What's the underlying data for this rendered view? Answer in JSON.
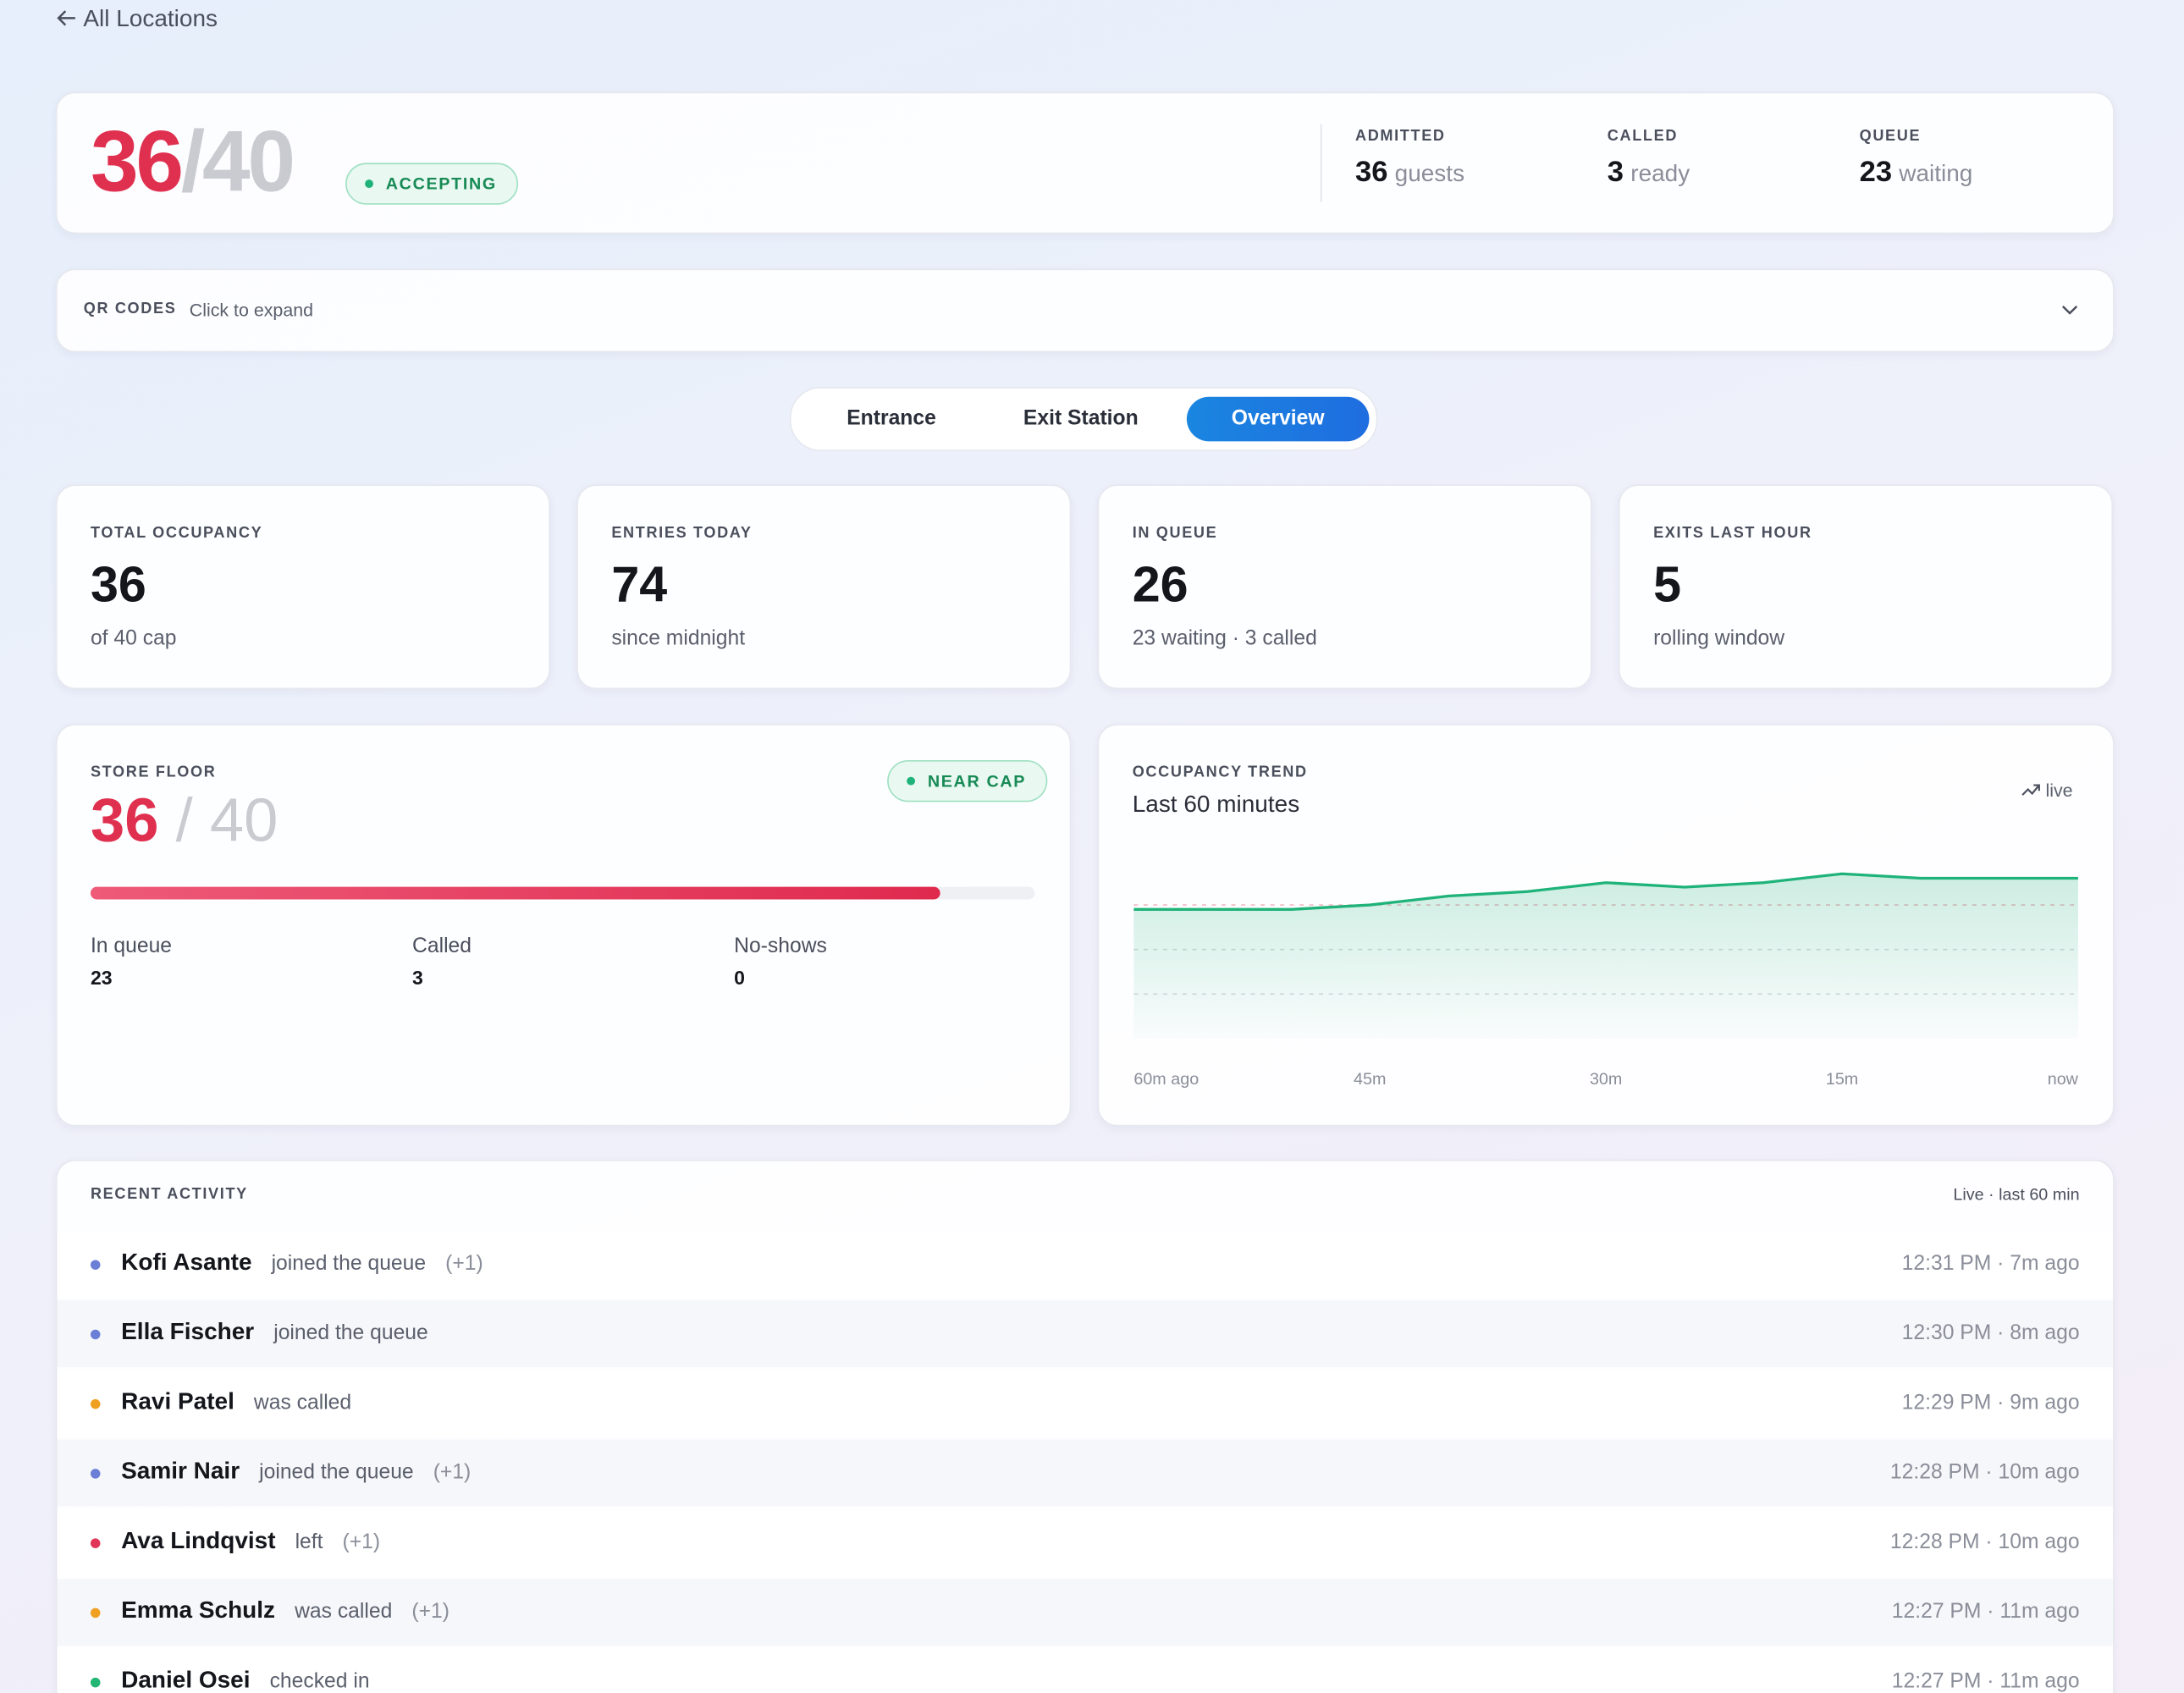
{
  "back": "All Locations",
  "summary": {
    "current": 36,
    "capacity": 40,
    "status": "ACCEPTING",
    "stats": [
      {
        "label": "ADMITTED",
        "value": 36,
        "unit": "guests"
      },
      {
        "label": "CALLED",
        "value": 3,
        "unit": "ready"
      },
      {
        "label": "QUEUE",
        "value": 23,
        "unit": "waiting"
      }
    ]
  },
  "qr": {
    "label": "QR CODES",
    "hint": "Click to expand"
  },
  "tabs": [
    "Entrance",
    "Exit Station",
    "Overview"
  ],
  "active_tab": 2,
  "cards": [
    {
      "label": "TOTAL OCCUPANCY",
      "value": 36,
      "sub": "of 40 cap"
    },
    {
      "label": "ENTRIES TODAY",
      "value": 74,
      "sub": "since midnight"
    },
    {
      "label": "IN QUEUE",
      "value": 26,
      "sub": "23 waiting · 3 called"
    },
    {
      "label": "EXITS LAST HOUR",
      "value": 5,
      "sub": "rolling window"
    }
  ],
  "floor": {
    "label": "STORE FLOOR",
    "status": "NEAR CAP",
    "current": 36,
    "capacity": 40,
    "stats": [
      {
        "label": "In queue",
        "value": 23
      },
      {
        "label": "Called",
        "value": 3
      },
      {
        "label": "No-shows",
        "value": 0
      }
    ]
  },
  "chart_data": {
    "type": "line",
    "label": "OCCUPANCY TREND",
    "title": "Last 60 minutes",
    "badge": "live",
    "categories": [
      "60m ago",
      null,
      null,
      "45m",
      null,
      null,
      "30m",
      null,
      null,
      "15m",
      null,
      null,
      "now"
    ],
    "values": [
      29,
      29,
      29,
      30,
      32,
      33,
      35,
      34,
      35,
      37,
      36,
      36,
      36
    ],
    "color": "#1fb37a",
    "ylim": [
      0,
      45
    ],
    "yticks": [
      10,
      20,
      30
    ],
    "grid": true
  },
  "activity": {
    "title": "RECENT ACTIVITY",
    "meta": "Live · last 60 min",
    "rows": [
      {
        "name": "Kofi Asante",
        "action": "joined the queue",
        "extra": "(+1)",
        "time": "12:31 PM · 7m ago",
        "color": "#6b7fd7"
      },
      {
        "name": "Ella Fischer",
        "action": "joined the queue",
        "extra": null,
        "time": "12:30 PM · 8m ago",
        "color": "#6b7fd7"
      },
      {
        "name": "Ravi Patel",
        "action": "was called",
        "extra": null,
        "time": "12:29 PM · 9m ago",
        "color": "#f0a020"
      },
      {
        "name": "Samir Nair",
        "action": "joined the queue",
        "extra": "(+1)",
        "time": "12:28 PM · 10m ago",
        "color": "#6b7fd7"
      },
      {
        "name": "Ava Lindqvist",
        "action": "left",
        "extra": "(+1)",
        "time": "12:28 PM · 10m ago",
        "color": "#e03458"
      },
      {
        "name": "Emma Schulz",
        "action": "was called",
        "extra": "(+1)",
        "time": "12:27 PM · 11m ago",
        "color": "#f0a020"
      },
      {
        "name": "Daniel Osei",
        "action": "checked in",
        "extra": null,
        "time": "12:27 PM · 11m ago",
        "color": "#22b573"
      }
    ]
  }
}
